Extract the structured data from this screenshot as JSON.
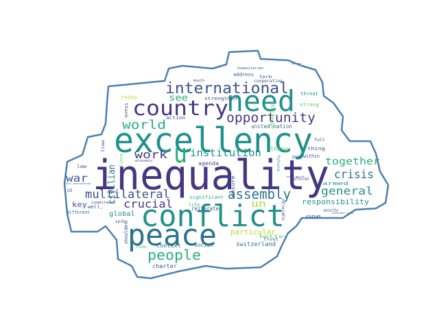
{
  "palette": {
    "outline": "#4a7fb0",
    "shape_fill": "#ffffff",
    "dark_purple": "#453781",
    "indigo": "#3b528b",
    "blue": "#2c728e",
    "teal": "#21918c",
    "green": "#28ae80",
    "light_green": "#5ec962",
    "yellow_green": "#addc30",
    "deep": "#482878"
  },
  "words": [
    {
      "id": "inequality",
      "text": "inequality",
      "color": "dark_purple"
    },
    {
      "id": "excellency",
      "text": "excellency",
      "color": "teal"
    },
    {
      "id": "conflict",
      "text": "conflict",
      "color": "teal"
    },
    {
      "id": "peace",
      "text": "peace",
      "color": "blue"
    },
    {
      "id": "need",
      "text": "need",
      "color": "teal"
    },
    {
      "id": "country",
      "text": "country",
      "color": "dark_purple"
    },
    {
      "id": "international",
      "text": "international",
      "color": "indigo"
    },
    {
      "id": "u",
      "text": "u",
      "color": "green"
    },
    {
      "id": "opportunity",
      "text": "opportunity",
      "color": "dark_purple"
    },
    {
      "id": "world",
      "text": "world",
      "color": "green"
    },
    {
      "id": "people",
      "text": "people",
      "color": "green"
    },
    {
      "id": "assembly",
      "text": "assembly",
      "color": "blue"
    },
    {
      "id": "multilateral",
      "text": "multilateral",
      "color": "indigo"
    },
    {
      "id": "crucial",
      "text": "crucial",
      "color": "dark_purple"
    },
    {
      "id": "institution",
      "text": "institution",
      "color": "teal"
    },
    {
      "id": "work",
      "text": "work",
      "color": "dark_purple"
    },
    {
      "id": "crisis",
      "text": "crisis",
      "color": "blue"
    },
    {
      "id": "together",
      "text": "together",
      "color": "green"
    },
    {
      "id": "general",
      "text": "general",
      "color": "teal"
    },
    {
      "id": "war",
      "text": "war",
      "color": "indigo"
    },
    {
      "id": "see",
      "text": "see",
      "color": "green"
    },
    {
      "id": "responsibility",
      "text": "responsibility",
      "color": "teal"
    },
    {
      "id": "un",
      "text": "un",
      "color": "yellow_green"
    },
    {
      "id": "key",
      "text": "key",
      "color": "indigo"
    },
    {
      "id": "global",
      "text": "global",
      "color": "teal"
    },
    {
      "id": "civilian",
      "text": "civilian",
      "color": "blue"
    },
    {
      "id": "particular",
      "text": "particular",
      "color": "yellow_green"
    },
    {
      "id": "switzerland",
      "text": "switzerland",
      "color": "blue"
    },
    {
      "id": "social",
      "text": "social",
      "color": "blue"
    },
    {
      "id": "context",
      "text": "context",
      "color": "blue"
    },
    {
      "id": "charter",
      "text": "charter",
      "color": "indigo"
    },
    {
      "id": "united-nation",
      "text": "united nation",
      "color": "blue"
    },
    {
      "id": "agenda",
      "text": "agenda",
      "color": "indigo"
    },
    {
      "id": "reiterate",
      "text": "reiterate",
      "color": "indigo"
    },
    {
      "id": "significant",
      "text": "significant",
      "color": "green"
    },
    {
      "id": "life",
      "text": "life",
      "color": "green"
    },
    {
      "id": "ensure",
      "text": "ensure",
      "color": "indigo"
    },
    {
      "id": "action",
      "text": "action",
      "color": "indigo"
    },
    {
      "id": "today",
      "text": "today",
      "color": "yellow_green"
    },
    {
      "id": "strengthen",
      "text": "strengthen",
      "color": "indigo"
    },
    {
      "id": "challenge",
      "text": "challenge",
      "color": "light_green"
    },
    {
      "id": "thing",
      "text": "thing",
      "color": "light_green"
    },
    {
      "id": "within",
      "text": "within",
      "color": "indigo"
    },
    {
      "id": "point",
      "text": "point",
      "color": "indigo"
    },
    {
      "id": "one",
      "text": "one",
      "color": "indigo"
    },
    {
      "id": "armed",
      "text": "armed",
      "color": "indigo"
    },
    {
      "id": "security",
      "text": "security",
      "color": "teal"
    },
    {
      "id": "trust",
      "text": "trust",
      "color": "indigo"
    },
    {
      "id": "better",
      "text": "better",
      "color": "indigo"
    },
    {
      "id": "vulnerable",
      "text": "vulnerable",
      "color": "light_green"
    },
    {
      "id": "affected",
      "text": "affected",
      "color": "indigo"
    },
    {
      "id": "woman",
      "text": "woman",
      "color": "indigo"
    },
    {
      "id": "future",
      "text": "future",
      "color": "teal"
    },
    {
      "id": "full",
      "text": "full",
      "color": "indigo"
    },
    {
      "id": "strong",
      "text": "strong",
      "color": "light_green"
    },
    {
      "id": "threat",
      "text": "threat",
      "color": "teal"
    },
    {
      "id": "cooperation",
      "text": "cooperation",
      "color": "indigo"
    },
    {
      "id": "term",
      "text": "term",
      "color": "indigo"
    },
    {
      "id": "address",
      "text": "address",
      "color": "indigo"
    },
    {
      "id": "humanitarian",
      "text": "humanitarian",
      "color": "indigo"
    },
    {
      "id": "much",
      "text": "much",
      "color": "indigo"
    },
    {
      "id": "thank",
      "text": "thank",
      "color": "indigo"
    },
    {
      "id": "time",
      "text": "time",
      "color": "indigo"
    },
    {
      "id": "economic",
      "text": "economic",
      "color": "indigo"
    },
    {
      "id": "every",
      "text": "every",
      "color": "light_green"
    },
    {
      "id": "law",
      "text": "law",
      "color": "indigo"
    },
    {
      "id": "id",
      "text": "id",
      "color": "indigo"
    },
    {
      "id": "different",
      "text": "different",
      "color": "blue"
    },
    {
      "id": "well",
      "text": "well,",
      "color": "indigo"
    },
    {
      "id": "commitment",
      "text": "commitment",
      "color": "indigo"
    },
    {
      "id": "spike",
      "text": "spike",
      "color": "indigo"
    },
    {
      "id": "shoulder",
      "text": "shoulder",
      "color": "indigo"
    },
    {
      "id": "come",
      "text": "come",
      "color": "light_green"
    },
    {
      "id": "axis-confrontation",
      "text": "axis confrontation",
      "color": "indigo"
    },
    {
      "id": "president-swiss",
      "text": "president swiss",
      "color": "indigo"
    },
    {
      "id": "based-belief",
      "text": "based belief",
      "color": "indigo"
    },
    {
      "id": "past-year",
      "text": "past year",
      "color": "indigo"
    }
  ]
}
